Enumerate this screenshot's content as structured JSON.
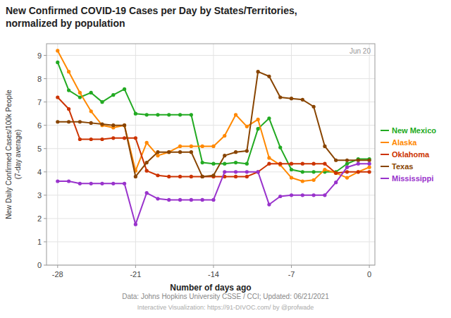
{
  "chart_data": {
    "type": "line",
    "title": "New Confirmed COVID-19 Cases per Day by States/Territories,\nnormalized by population",
    "x_label": "Number of days ago",
    "y_label": "New Daily Confirmed Cases/100k People\n(7-day average)",
    "annotations": [
      "Jun 20"
    ],
    "footnotes": [
      "Data: Johns Hopkins University CSSE / CCI; Updated: 06/21/2021",
      "Interactive Visualization: https://91-DIVOC.com/ by @profwade"
    ],
    "x": [
      -28,
      -27,
      -26,
      -25,
      -24,
      -23,
      -22,
      -21,
      -20,
      -19,
      -18,
      -17,
      -16,
      -15,
      -14,
      -13,
      -12,
      -11,
      -10,
      -9,
      -8,
      -7,
      -6,
      -5,
      -4,
      -3,
      -2,
      -1,
      0
    ],
    "series": [
      {
        "name": "New Mexico",
        "color": "#22aa22",
        "marker": "circle",
        "values": [
          8.7,
          7.5,
          7.2,
          7.4,
          7.0,
          7.3,
          7.55,
          6.5,
          6.45,
          6.45,
          6.45,
          6.45,
          6.45,
          4.4,
          4.35,
          4.35,
          4.4,
          4.35,
          5.85,
          6.3,
          5.05,
          4.1,
          4.0,
          4.0,
          4.0,
          4.0,
          4.35,
          4.55,
          4.55
        ]
      },
      {
        "name": "Alaska",
        "color": "#ff8800",
        "marker": "circle",
        "values": [
          9.2,
          8.3,
          7.4,
          6.6,
          6.0,
          5.9,
          6.0,
          4.05,
          5.25,
          4.7,
          4.85,
          5.1,
          5.1,
          5.1,
          5.1,
          5.55,
          6.45,
          5.95,
          6.25,
          4.6,
          4.3,
          3.75,
          3.6,
          3.65,
          4.1,
          3.95,
          3.75,
          4.0,
          4.2
        ]
      },
      {
        "name": "Oklahoma",
        "color": "#cc3300",
        "marker": "circle",
        "values": [
          7.2,
          6.7,
          5.4,
          5.4,
          5.4,
          5.45,
          5.45,
          5.45,
          4.05,
          3.85,
          3.8,
          3.8,
          3.8,
          3.8,
          3.8,
          3.8,
          3.8,
          3.8,
          4.0,
          4.35,
          4.35,
          4.35,
          4.35,
          4.35,
          4.35,
          3.95,
          4.0,
          4.0,
          4.0
        ]
      },
      {
        "name": "Texas",
        "color": "#884400",
        "marker": "circle",
        "values": [
          6.15,
          6.15,
          6.15,
          6.1,
          6.05,
          6.0,
          6.0,
          3.8,
          4.4,
          4.85,
          4.85,
          4.85,
          4.85,
          3.8,
          3.85,
          4.7,
          4.85,
          4.9,
          8.3,
          8.1,
          7.2,
          7.15,
          7.1,
          6.8,
          5.1,
          4.5,
          4.5,
          4.5,
          4.5
        ]
      },
      {
        "name": "Mississippi",
        "color": "#9933cc",
        "marker": "circle",
        "values": [
          3.6,
          3.6,
          3.5,
          3.5,
          3.5,
          3.5,
          3.5,
          1.75,
          3.1,
          2.85,
          2.8,
          2.8,
          2.8,
          2.8,
          2.8,
          4.0,
          4.0,
          4.0,
          4.0,
          2.6,
          2.95,
          3.0,
          3.0,
          3.0,
          3.0,
          3.55,
          4.2,
          4.35,
          4.35
        ]
      }
    ],
    "xlim": [
      -29,
      0.5
    ],
    "ylim": [
      0,
      9.5
    ],
    "xticks": [
      -28,
      -21,
      -14,
      -7,
      0
    ],
    "yticks": [
      0,
      1,
      2,
      3,
      4,
      5,
      6,
      7,
      8,
      9
    ],
    "grid": true,
    "legend": "right"
  }
}
